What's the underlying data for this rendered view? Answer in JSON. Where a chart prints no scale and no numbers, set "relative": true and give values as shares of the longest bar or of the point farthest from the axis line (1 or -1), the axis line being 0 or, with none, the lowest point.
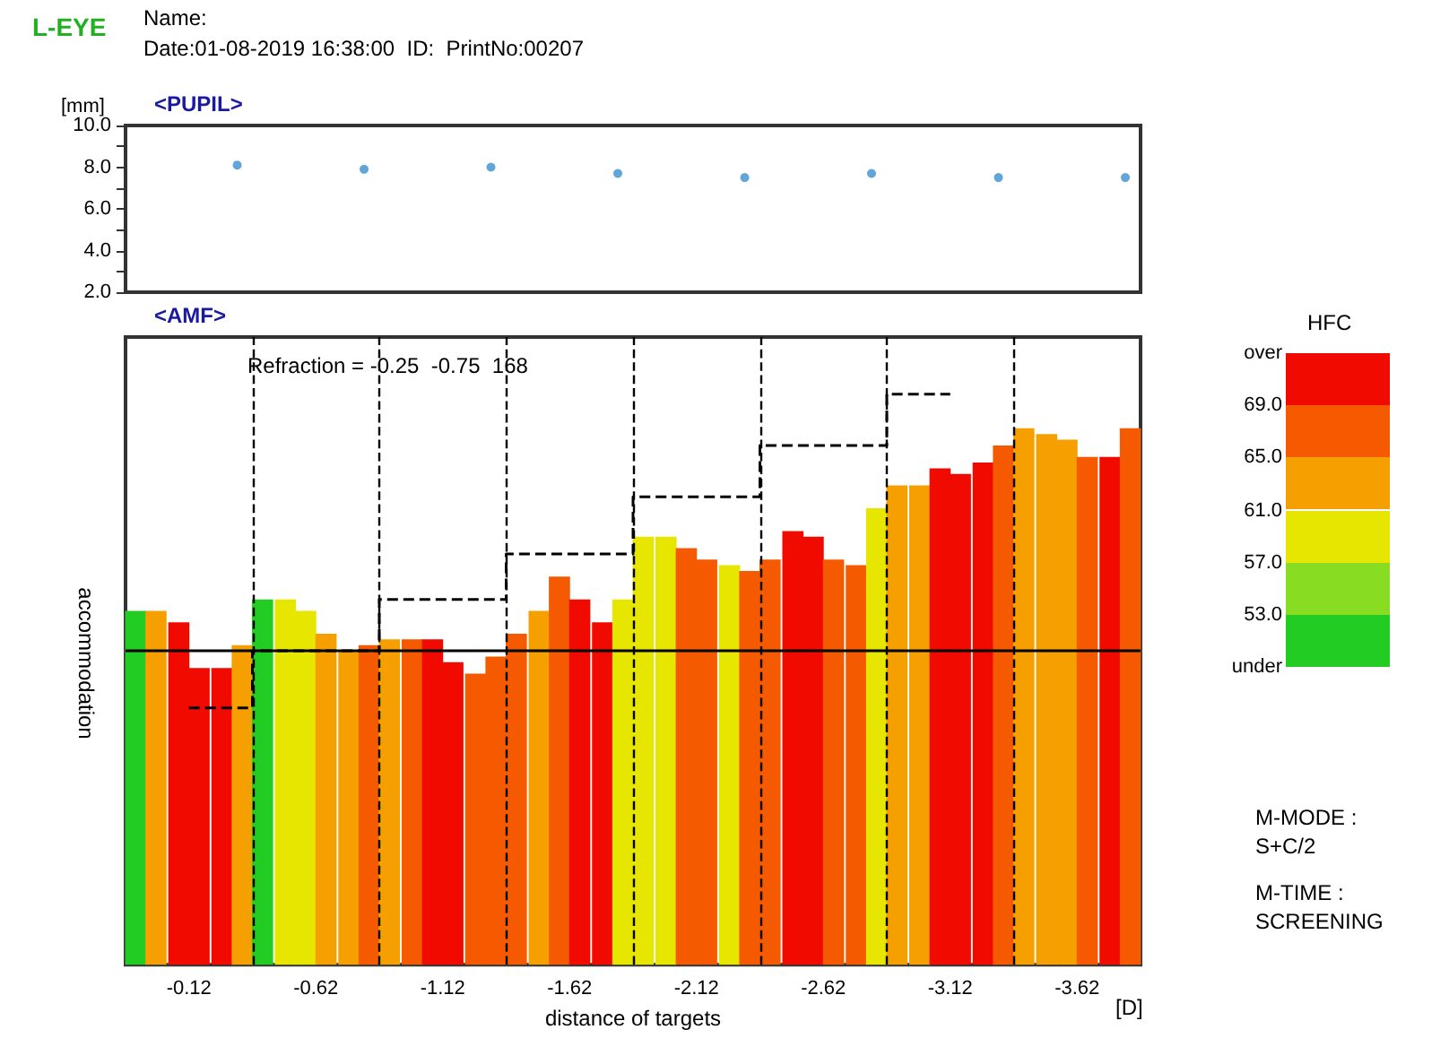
{
  "chart_data": [
    {
      "type": "scatter",
      "title": "<PUPIL>",
      "ylabel": "[mm]",
      "annotations": [
        "L-EYE",
        "Name:",
        "Date:01-08-2019 16:38:00  ID:  PrintNo:00207"
      ],
      "x": [
        -0.31,
        -0.81,
        -1.31,
        -1.81,
        -2.31,
        -2.81,
        -3.31,
        -3.81
      ],
      "values": [
        8.1,
        7.9,
        8.0,
        7.7,
        7.5,
        7.7,
        7.5,
        7.5
      ],
      "color": "#3a8fd0",
      "marker": "circle",
      "xlim": [
        0.13,
        -3.87
      ],
      "xticks": [
        -0.12,
        -0.62,
        -1.12,
        -1.62,
        -2.12,
        -2.62,
        -3.12,
        -3.62
      ],
      "ylim": [
        2,
        10
      ],
      "yticks": [
        {
          "value": 2,
          "label": "2.0"
        },
        {
          "value": 3,
          "label": null
        },
        {
          "value": 4,
          "label": "4.0"
        },
        {
          "value": 5,
          "label": null
        },
        {
          "value": 6,
          "label": "6.0"
        },
        {
          "value": 7,
          "label": null
        },
        {
          "value": 8,
          "label": "8.0"
        },
        {
          "value": 9,
          "label": null
        },
        {
          "value": 10,
          "label": "10.0"
        }
      ],
      "tick_labels": "y"
    },
    {
      "type": "bar",
      "title": "<AMF>",
      "xlabel": "distance of targets",
      "ylabel": "accommodation",
      "clabel": "HFC",
      "cticks": [
        {
          "value": 49,
          "label": "under"
        },
        {
          "value": 53,
          "label": "53.0"
        },
        {
          "value": 57,
          "label": "57.0"
        },
        {
          "value": 61,
          "label": "61.0"
        },
        {
          "value": 65,
          "label": "65.0"
        },
        {
          "value": 69,
          "label": "69.0"
        },
        {
          "value": 73,
          "label": "over"
        }
      ],
      "colors": [
        "#22cc22",
        "#88dd22",
        "#e6e600",
        "#f5a000",
        "#f55a00",
        "#f00a00"
      ],
      "relative": true,
      "tick_labels": "x",
      "xlim": [
        0.13,
        -3.87
      ],
      "xticks": [
        -0.12,
        -0.62,
        -1.12,
        -1.62,
        -2.12,
        -2.62,
        -3.12,
        -3.62
      ],
      "annotations": [
        "Refraction = -0.25  -0.75  168",
        "[D]",
        "M-MODE :",
        "S+C/2",
        "M-TIME :",
        "SCREENING"
      ],
      "ref_lines": [
        {
          "axis": "y",
          "value": 0.55,
          "color": "#000000",
          "line_style": "solid"
        },
        {
          "axis": "x",
          "value": -0.37,
          "color": "#000000",
          "line_style": "dashed"
        },
        {
          "axis": "x",
          "value": -0.87,
          "color": "#000000",
          "line_style": "dashed"
        },
        {
          "axis": "x",
          "value": -1.37,
          "color": "#000000",
          "line_style": "dashed"
        },
        {
          "axis": "x",
          "value": -1.87,
          "color": "#000000",
          "line_style": "dashed"
        },
        {
          "axis": "x",
          "value": -2.37,
          "color": "#000000",
          "line_style": "dashed"
        },
        {
          "axis": "x",
          "value": -2.87,
          "color": "#000000",
          "line_style": "dashed"
        },
        {
          "axis": "x",
          "value": -3.37,
          "color": "#000000",
          "line_style": "dashed"
        }
      ],
      "series": [
        {
          "x": [
            0.09,
            0.01,
            -0.08,
            -0.16,
            -0.25,
            -0.33,
            -0.41,
            -0.5,
            -0.58,
            -0.66,
            -0.75,
            -0.83,
            -0.91,
            -1.0,
            -1.08,
            -1.16,
            -1.25,
            -1.33,
            -1.41,
            -1.5,
            -1.58,
            -1.66,
            -1.75,
            -1.83,
            -1.91,
            -2.0,
            -2.08,
            -2.16,
            -2.25,
            -2.33,
            -2.41,
            -2.5,
            -2.58,
            -2.66,
            -2.75,
            -2.83,
            -2.91,
            -3.0,
            -3.08,
            -3.16,
            -3.25,
            -3.33,
            -3.41,
            -3.5,
            -3.58,
            -3.66,
            -3.75,
            -3.83
          ],
          "values": [
            0.62,
            0.62,
            0.6,
            0.52,
            0.52,
            0.56,
            0.64,
            0.64,
            0.62,
            0.58,
            0.55,
            0.56,
            0.57,
            0.57,
            0.57,
            0.53,
            0.51,
            0.54,
            0.58,
            0.62,
            0.68,
            0.64,
            0.6,
            0.64,
            0.75,
            0.75,
            0.73,
            0.71,
            0.7,
            0.69,
            0.71,
            0.76,
            0.75,
            0.71,
            0.7,
            0.8,
            0.84,
            0.84,
            0.87,
            0.86,
            0.88,
            0.91,
            0.94,
            0.93,
            0.92,
            0.89,
            0.89,
            0.94
          ],
          "colors": [
            "#22cc22",
            "#f5a000",
            "#f00a00",
            "#f00a00",
            "#f00a00",
            "#f5a000",
            "#22cc22",
            "#e6e600",
            "#e6e600",
            "#f5a000",
            "#f5a000",
            "#f55a00",
            "#f5a000",
            "#f55a00",
            "#f00a00",
            "#f00a00",
            "#f55a00",
            "#f55a00",
            "#f55a00",
            "#f5a000",
            "#f55a00",
            "#f00a00",
            "#f00a00",
            "#e6e600",
            "#e6e600",
            "#e6e600",
            "#f55a00",
            "#f55a00",
            "#e6e600",
            "#f55a00",
            "#f55a00",
            "#f00a00",
            "#f00a00",
            "#f55a00",
            "#f55a00",
            "#e6e600",
            "#f5a000",
            "#f5a000",
            "#f00a00",
            "#f00a00",
            "#f00a00",
            "#f55a00",
            "#f5a000",
            "#f5a000",
            "#f5a000",
            "#f55a00",
            "#f00a00",
            "#f55a00"
          ]
        },
        {
          "type": "step",
          "color": "#000000",
          "line_style": "dashed",
          "x": [
            -0.12,
            -0.62,
            -1.12,
            -1.62,
            -2.12,
            -2.62,
            -3.12
          ],
          "values": [
            0.45,
            0.55,
            0.64,
            0.72,
            0.82,
            0.91,
            1
          ]
        }
      ]
    }
  ]
}
